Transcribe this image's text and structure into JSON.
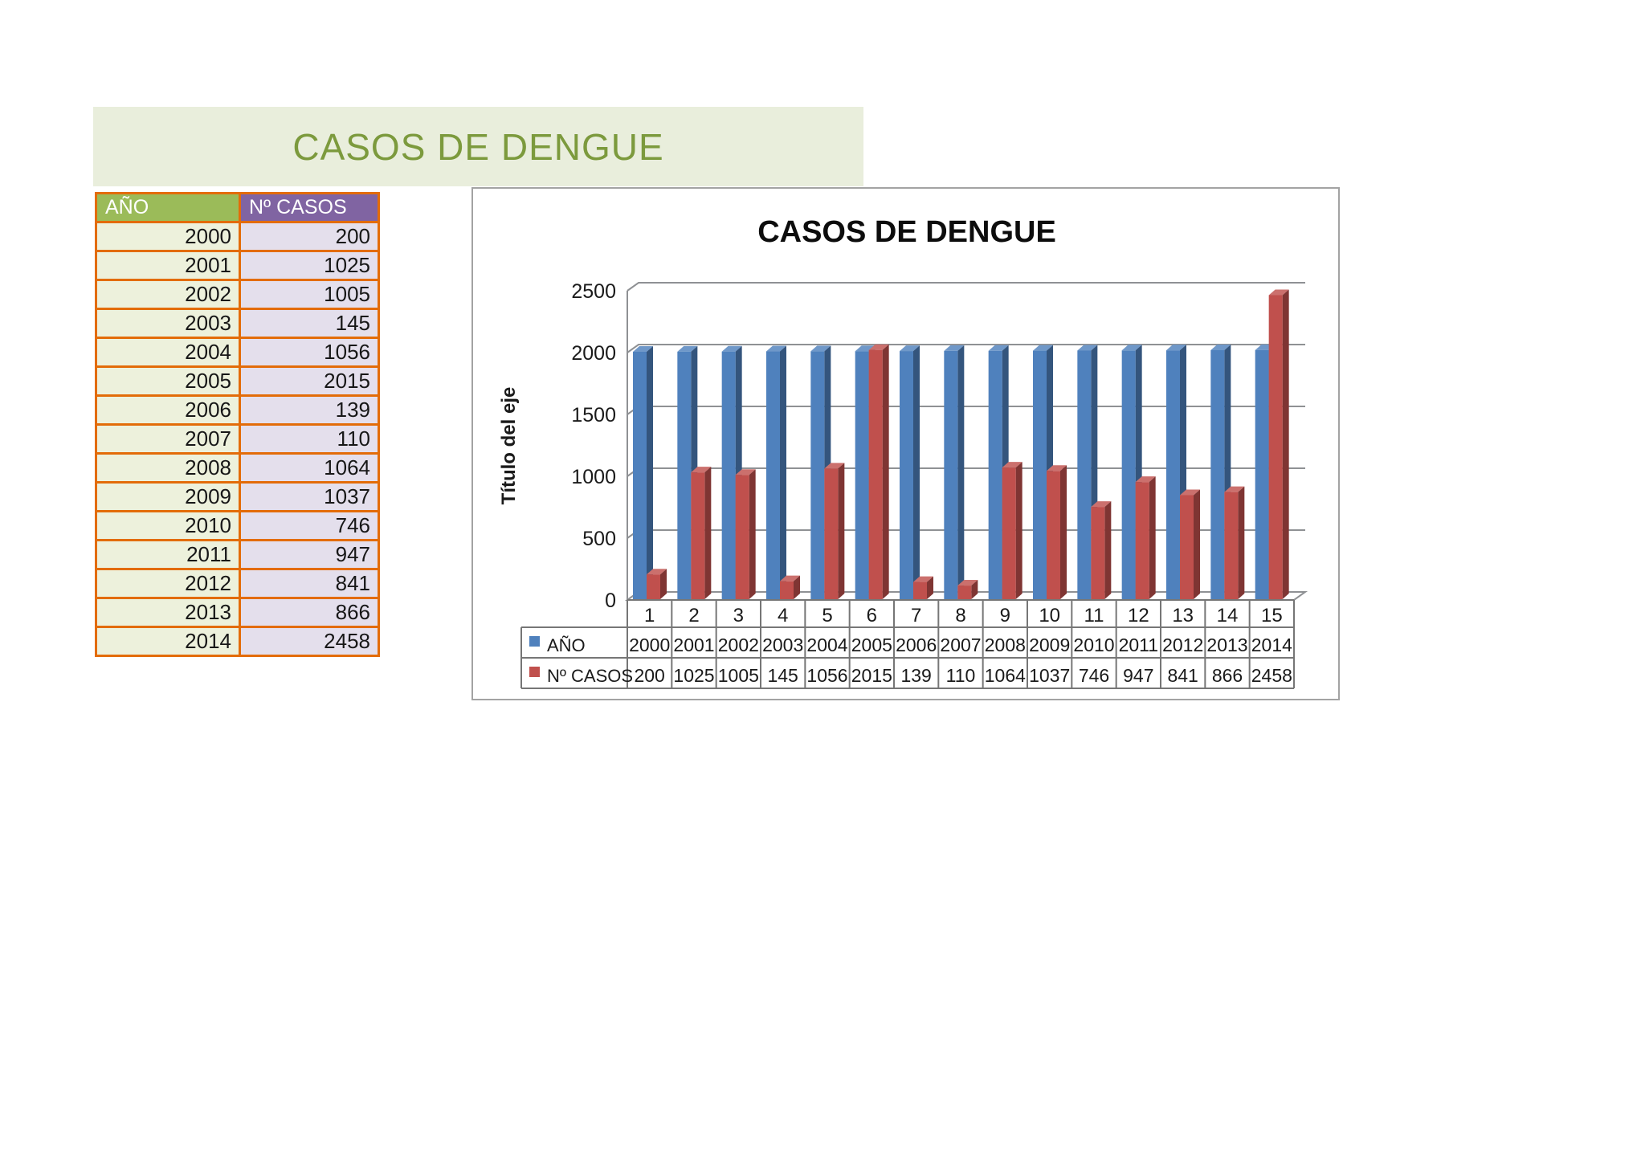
{
  "banner": {
    "title": "CASOS DE DENGUE",
    "bg_color": "#E9EEDC",
    "text_color": "#7C9A3D"
  },
  "side_table": {
    "border_color": "#E36C09",
    "header_text_color": "#FFFFFF",
    "columns": [
      {
        "label": "AÑO",
        "header_bg": "#9BBB59",
        "cell_bg": "#EDF1DC"
      },
      {
        "label": "Nº CASOS",
        "header_bg": "#8064A2",
        "cell_bg": "#E4DFEC"
      }
    ],
    "rows": [
      [
        "2000",
        "200"
      ],
      [
        "2001",
        "1025"
      ],
      [
        "2002",
        "1005"
      ],
      [
        "2003",
        "145"
      ],
      [
        "2004",
        "1056"
      ],
      [
        "2005",
        "2015"
      ],
      [
        "2006",
        "139"
      ],
      [
        "2007",
        "110"
      ],
      [
        "2008",
        "1064"
      ],
      [
        "2009",
        "1037"
      ],
      [
        "2010",
        "746"
      ],
      [
        "2011",
        "947"
      ],
      [
        "2012",
        "841"
      ],
      [
        "2013",
        "866"
      ],
      [
        "2014",
        "2458"
      ]
    ]
  },
  "chart_data": {
    "type": "bar",
    "style": "3d-clustered-column",
    "title": "CASOS DE DENGUE",
    "ylabel": "Título del eje",
    "xlabel": "",
    "ylim": [
      0,
      2500
    ],
    "yticks": [
      "0",
      "500",
      "1000",
      "1500",
      "2000",
      "2500"
    ],
    "grid": true,
    "data_table_shown": true,
    "legend_position": "left-of-data-table",
    "categories": [
      "1",
      "2",
      "3",
      "4",
      "5",
      "6",
      "7",
      "8",
      "9",
      "10",
      "11",
      "12",
      "13",
      "14",
      "15"
    ],
    "series": [
      {
        "name": "AÑO",
        "color": "#4F81BD",
        "values": [
          2000,
          2001,
          2002,
          2003,
          2004,
          2005,
          2006,
          2007,
          2008,
          2009,
          2010,
          2011,
          2012,
          2013,
          2014
        ]
      },
      {
        "name": "Nº CASOS",
        "color": "#C0504D",
        "values": [
          200,
          1025,
          1005,
          145,
          1056,
          2015,
          139,
          110,
          1064,
          1037,
          746,
          947,
          841,
          866,
          2458
        ]
      }
    ]
  }
}
